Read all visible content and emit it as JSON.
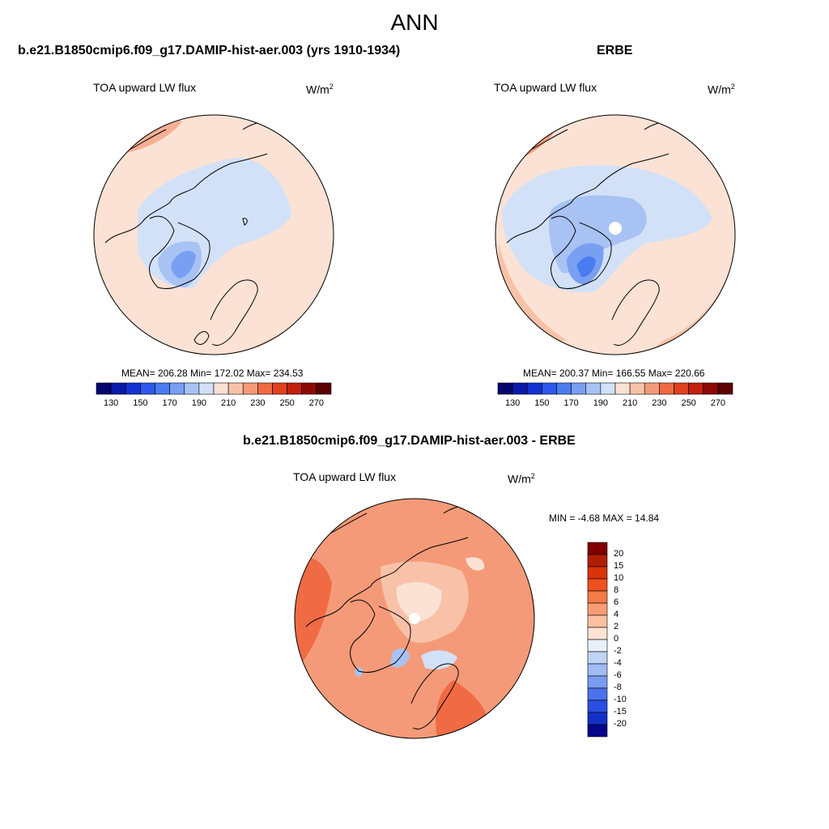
{
  "main_title": "ANN",
  "panels": [
    {
      "title": "b.e21.B1850cmip6.f09_g17.DAMIP-hist-aer.003 (yrs 1910-1934)",
      "variable": "TOA upward LW flux",
      "units_base": "W/m",
      "units_exp": "2",
      "stats": "MEAN= 206.28  Min= 172.02  Max= 234.53"
    },
    {
      "title": "ERBE",
      "variable": "TOA upward LW flux",
      "units_base": "W/m",
      "units_exp": "2",
      "stats": "MEAN= 200.37  Min= 166.55  Max= 220.66"
    },
    {
      "title": "b.e21.B1850cmip6.f09_g17.DAMIP-hist-aer.003 - ERBE",
      "variable": "TOA upward LW flux",
      "units_base": "W/m",
      "units_exp": "2",
      "stats": "MIN =  -4.68 MAX =  14.84"
    }
  ],
  "chart_data": [
    {
      "type": "heatmap",
      "projection": "north polar stereographic",
      "title": "b.e21.B1850cmip6.f09_g17.DAMIP-hist-aer.003 (yrs 1910-1934)",
      "field": "TOA upward LW flux",
      "units": "W/m^2",
      "mean": 206.28,
      "min": 172.02,
      "max": 234.53,
      "colorbar": {
        "levels": [
          130,
          140,
          150,
          160,
          170,
          180,
          190,
          200,
          210,
          220,
          230,
          240,
          250,
          260,
          270
        ],
        "tick_labels": [
          "130",
          "150",
          "170",
          "190",
          "210",
          "230",
          "250",
          "270"
        ],
        "colors": [
          "#06066e",
          "#0a1aa8",
          "#1432d2",
          "#2d58eb",
          "#4a7cf0",
          "#789ff2",
          "#a8c2f4",
          "#d2e1f8",
          "#fbe2d4",
          "#f8c2a8",
          "#f59a78",
          "#f06a44",
          "#e0401e",
          "#c0200c",
          "#8c0a04",
          "#5c0000"
        ]
      }
    },
    {
      "type": "heatmap",
      "projection": "north polar stereographic",
      "title": "ERBE",
      "field": "TOA upward LW flux",
      "units": "W/m^2",
      "mean": 200.37,
      "min": 166.55,
      "max": 220.66,
      "colorbar": {
        "levels": [
          130,
          140,
          150,
          160,
          170,
          180,
          190,
          200,
          210,
          220,
          230,
          240,
          250,
          260,
          270
        ],
        "tick_labels": [
          "130",
          "150",
          "170",
          "190",
          "210",
          "230",
          "250",
          "270"
        ],
        "colors": [
          "#06066e",
          "#0a1aa8",
          "#1432d2",
          "#2d58eb",
          "#4a7cf0",
          "#789ff2",
          "#a8c2f4",
          "#d2e1f8",
          "#fbe2d4",
          "#f8c2a8",
          "#f59a78",
          "#f06a44",
          "#e0401e",
          "#c0200c",
          "#8c0a04",
          "#5c0000"
        ]
      }
    },
    {
      "type": "heatmap",
      "projection": "north polar stereographic",
      "title": "b.e21.B1850cmip6.f09_g17.DAMIP-hist-aer.003 - ERBE",
      "field": "TOA upward LW flux",
      "units": "W/m^2",
      "min": -4.68,
      "max": 14.84,
      "colorbar": {
        "orientation": "vertical",
        "levels": [
          -20,
          -15,
          -10,
          -8,
          -6,
          -4,
          -2,
          0,
          2,
          4,
          6,
          8,
          10,
          15,
          20
        ],
        "tick_labels": [
          "20",
          "15",
          "10",
          "8",
          "6",
          "4",
          "2",
          "0",
          "-2",
          "-4",
          "-6",
          "-8",
          "-10",
          "-15",
          "-20"
        ],
        "colors": [
          "#800000",
          "#b01e04",
          "#d8340c",
          "#f05020",
          "#f47a48",
          "#f89c74",
          "#fbc0a0",
          "#fde4d4",
          "#e8f0fa",
          "#c0d4f6",
          "#a0bcf4",
          "#789cf0",
          "#4a72ec",
          "#2a4ee4",
          "#1430c8",
          "#06068c"
        ]
      }
    }
  ]
}
